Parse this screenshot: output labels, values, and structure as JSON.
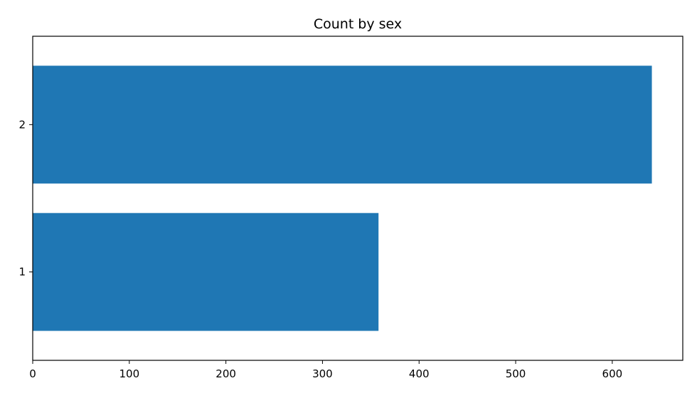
{
  "chart_data": {
    "type": "bar",
    "orientation": "horizontal",
    "title": "Count by sex",
    "categories": [
      "1",
      "2"
    ],
    "values": [
      358,
      641
    ],
    "xlim": [
      0,
      673
    ],
    "x_ticks": [
      0,
      100,
      200,
      300,
      400,
      500,
      600
    ],
    "grid": false,
    "legend": "none",
    "bar_color": "#1f77b4"
  }
}
